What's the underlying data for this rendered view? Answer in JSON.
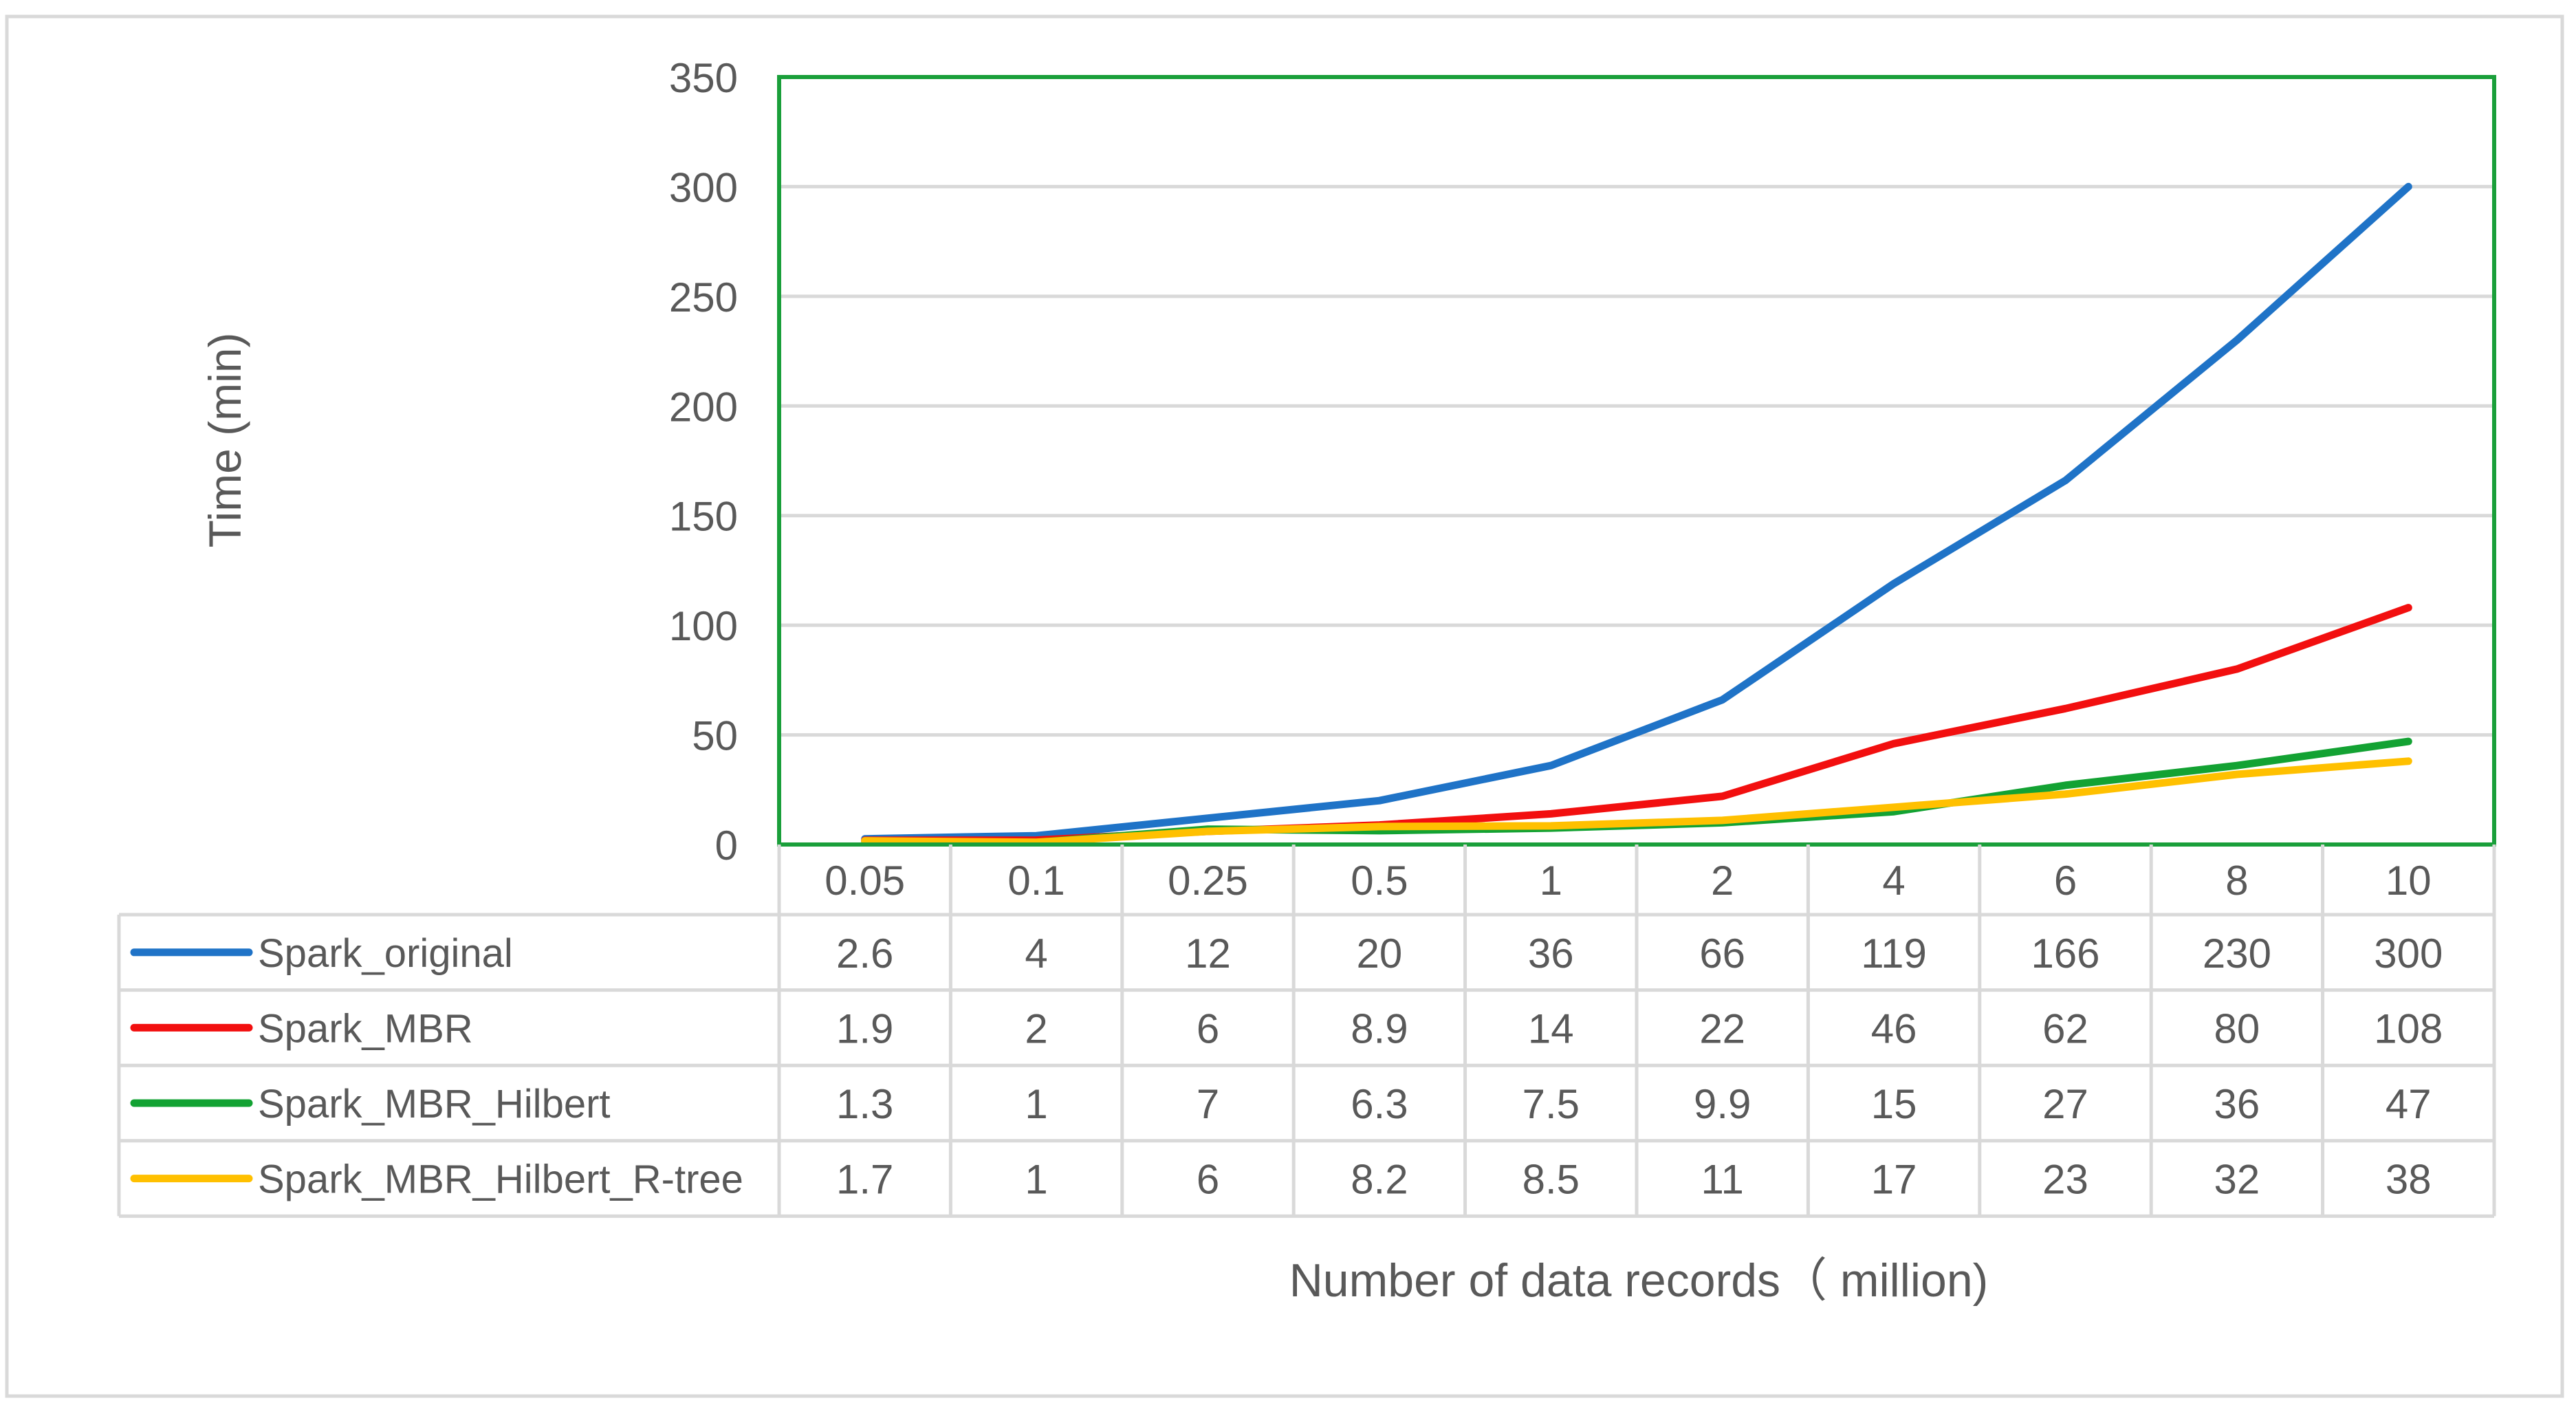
{
  "chart_data": {
    "type": "line",
    "title": "",
    "xlabel": "Number of data records（ million)",
    "ylabel": "Time (min)",
    "categories": [
      "0.05",
      "0.1",
      "0.25",
      "0.5",
      "1",
      "2",
      "4",
      "6",
      "8",
      "10"
    ],
    "ylim": [
      0,
      350
    ],
    "yticks": [
      "0",
      "50",
      "100",
      "150",
      "200",
      "250",
      "300",
      "350"
    ],
    "grid": true,
    "legend": "data table",
    "plot_border_color": "#1A9F3A",
    "series": [
      {
        "name": "Spark_original",
        "color": "#1F73C7",
        "values": [
          2.6,
          4,
          12,
          20,
          36,
          66,
          119,
          166,
          230,
          300
        ],
        "labels": [
          "2.6",
          "4",
          "12",
          "20",
          "36",
          "66",
          "119",
          "166",
          "230",
          "300"
        ]
      },
      {
        "name": "Spark_MBR",
        "color": "#F20F0F",
        "values": [
          1.9,
          2,
          6,
          8.9,
          14,
          22,
          46,
          62,
          80,
          108
        ],
        "labels": [
          "1.9",
          "2",
          "6",
          "8.9",
          "14",
          "22",
          "46",
          "62",
          "80",
          "108"
        ]
      },
      {
        "name": "Spark_MBR_Hilbert",
        "color": "#13A233",
        "values": [
          1.3,
          1,
          7,
          6.3,
          7.5,
          9.9,
          15,
          27,
          36,
          47
        ],
        "labels": [
          "1.3",
          "1",
          "7",
          "6.3",
          "7.5",
          "9.9",
          "15",
          "27",
          "36",
          "47"
        ]
      },
      {
        "name": "Spark_MBR_Hilbert_R-tree",
        "color": "#FFC000",
        "values": [
          1.7,
          1,
          6,
          8.2,
          8.5,
          11,
          17,
          23,
          32,
          38
        ],
        "labels": [
          "1.7",
          "1",
          "6",
          "8.2",
          "8.5",
          "11",
          "17",
          "23",
          "32",
          "38"
        ]
      }
    ]
  }
}
